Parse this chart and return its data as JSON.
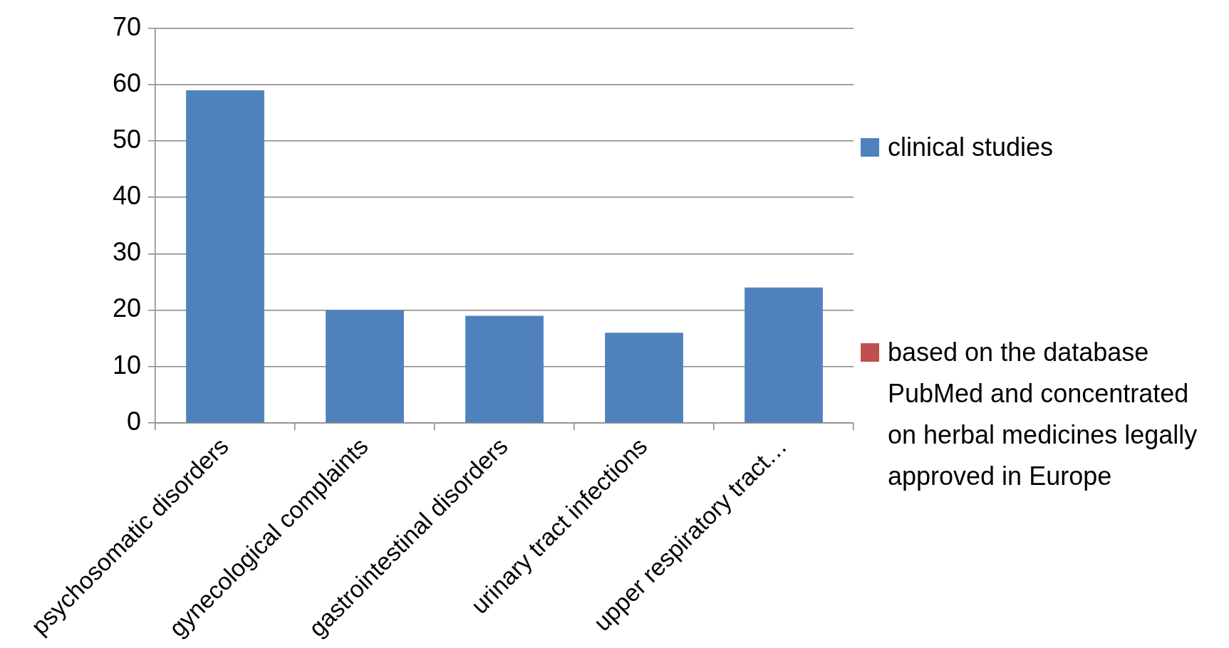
{
  "chart_data": {
    "type": "bar",
    "categories": [
      "psychosomatic disorders",
      "gynecological complaints",
      "gastrointestinal disorders",
      "urinary tract infections",
      "upper respiratory tract…"
    ],
    "series": [
      {
        "name": "clinical studies",
        "color": "#4f81bd",
        "values": [
          59,
          20,
          19,
          16,
          24
        ]
      },
      {
        "name": "based on the database PubMed and concentrated on herbal medicines legally approved in Europe",
        "color": "#c0504d",
        "values": [
          null,
          null,
          null,
          null,
          null
        ]
      }
    ],
    "ylim": [
      0,
      70
    ],
    "yticks": [
      0,
      10,
      20,
      30,
      40,
      50,
      60,
      70
    ],
    "grid": "y",
    "legend": "right"
  }
}
